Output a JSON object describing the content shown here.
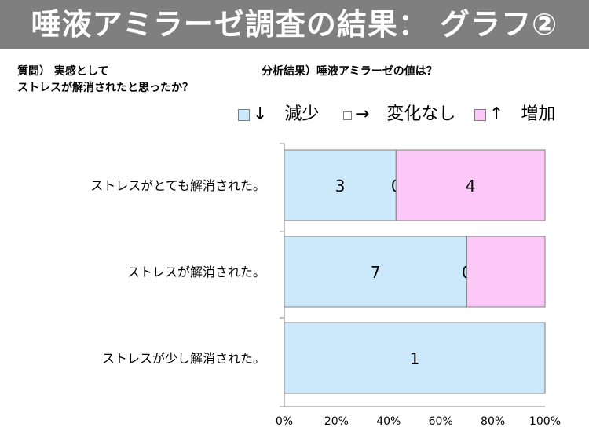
{
  "slide": {
    "title": "唾液アミラーゼ調査の結果： グラフ②",
    "question_label": "質問） 実感として",
    "question_text": "ストレスが解消されたと思ったか？",
    "result_label": "分析結果）唾液アミラーゼの値は？"
  },
  "colors": {
    "title_bar": "#7f7f7f",
    "decrease": "#cce9fb",
    "no_change": "#ffffff",
    "increase": "#fcc8f7",
    "border": "#808080"
  },
  "chart_data": {
    "type": "bar",
    "orientation": "horizontal",
    "stacked": "percent",
    "categories": [
      "ストレスがとても解消された。",
      "ストレスが解消された。",
      "ストレスが少し解消された。"
    ],
    "series": [
      {
        "name": "↓　減少",
        "values": [
          3,
          7,
          1
        ]
      },
      {
        "name": "→　変化なし",
        "values": [
          0,
          0,
          0
        ]
      },
      {
        "name": "↑　増加",
        "values": [
          4,
          3,
          0
        ]
      }
    ],
    "data_labels_visible": [
      [
        true,
        true,
        true
      ],
      [
        true,
        true,
        false
      ],
      [
        true,
        false,
        false
      ]
    ],
    "x_ticks": [
      "0%",
      "20%",
      "40%",
      "60%",
      "80%",
      "100%"
    ],
    "xlim": [
      0,
      100
    ],
    "grid": false,
    "legend_position": "top"
  }
}
